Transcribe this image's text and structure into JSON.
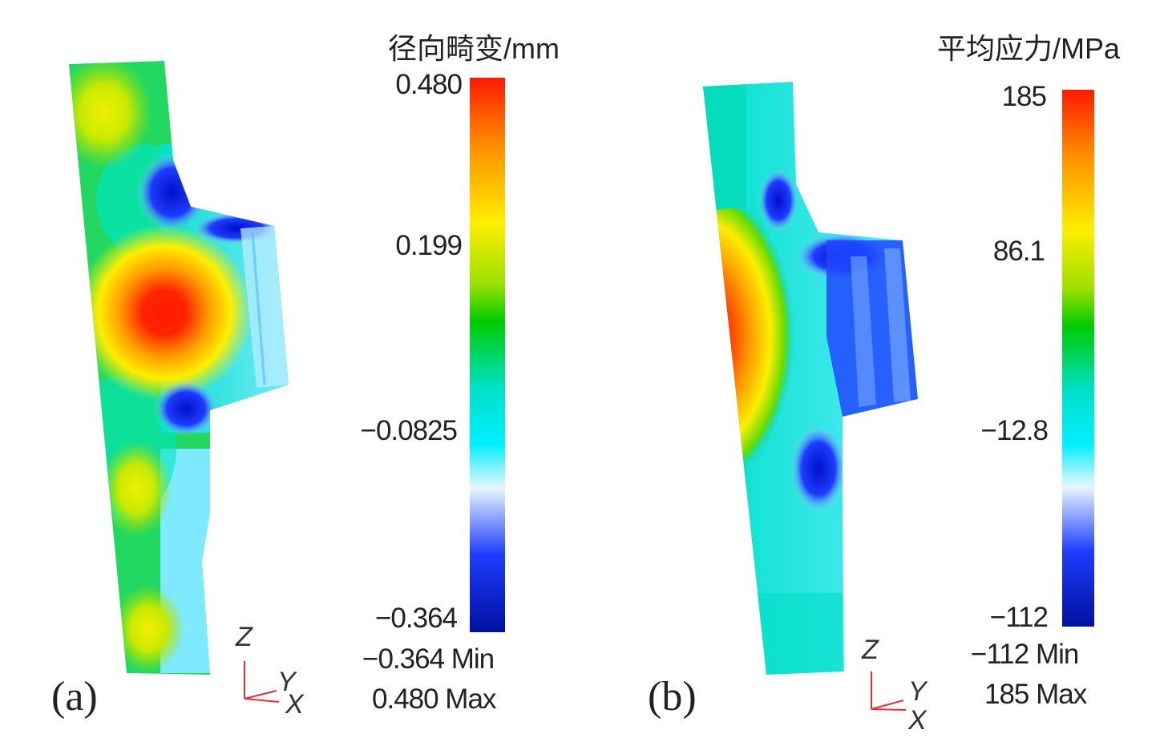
{
  "panels": [
    {
      "label": "(a)",
      "legend_title": "径向畸变/mm",
      "ticks": [
        "0.480",
        "0.199",
        "−0.0825",
        "−0.364"
      ],
      "min_text": "−0.364 Min",
      "max_text": "0.480 Max"
    },
    {
      "label": "(b)",
      "legend_title": "平均应力/MPa",
      "ticks": [
        "185",
        "86.1",
        "−12.8",
        "−112"
      ],
      "min_text": "−112 Min",
      "max_text": "185 Max"
    }
  ],
  "axes": {
    "z": "Z",
    "y": "Y",
    "x": "X"
  },
  "colors": {
    "colormap": [
      "#ff1a00",
      "#ff8c00",
      "#ffee00",
      "#9ee000",
      "#00cc00",
      "#00e0c8",
      "#00f0ff",
      "#e8f6ff",
      "#1e3cff",
      "#0010a0"
    ],
    "axis_triad": "#e83030"
  }
}
